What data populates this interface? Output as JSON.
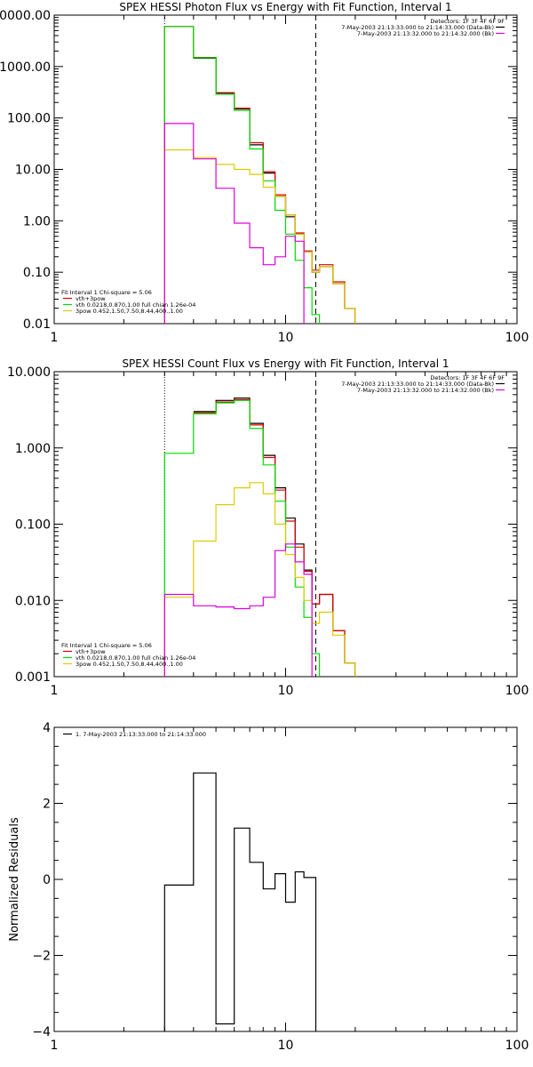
{
  "chart_data": [
    {
      "type": "line",
      "title": "SPEX HESSI Photon Flux vs Energy with Fit Function, Interval 1",
      "xscale": "log",
      "yscale": "log",
      "xlim": [
        1,
        100
      ],
      "ylim": [
        0.01,
        10000
      ],
      "xticks": [
        "1",
        "10",
        "100"
      ],
      "yticks": [
        "0.01",
        "0.10",
        "1.00",
        "10.00",
        "100.00",
        "1000.00",
        "10000.00"
      ],
      "vlines": [
        {
          "x": 3,
          "style": "dotted"
        },
        {
          "x": 13.5,
          "style": "dashed"
        }
      ],
      "info": {
        "detectors": "Detectors: 1F 3F 4F 6F 9F",
        "lines": [
          {
            "text": "7-May-2003 21:13:33.000 to 21:14:33.000 (Data-Bk)",
            "color": "#000000"
          },
          {
            "text": "7-May-2003 21:13:32.000 to 21:14:32.000 (Bk)",
            "color": "#dd00dd"
          }
        ]
      },
      "legend": {
        "header": "Fit Interval  1   Chi-square = 5.06",
        "entries": [
          {
            "text": "vth+3pow",
            "color": "#dd0000"
          },
          {
            "text": "vth 0.0218,0.870,1.00  full chian 1.26e-04",
            "color": "#00dd00"
          },
          {
            "text": "3pow 0.452,1.50,7.50,8.44,400.,1.00",
            "color": "#ddcc00"
          }
        ]
      },
      "edges": [
        3,
        4,
        5,
        6,
        7,
        8,
        9,
        10,
        11,
        12,
        13,
        14,
        16,
        18,
        20
      ],
      "series": [
        {
          "color": "#000000",
          "values": [
            null,
            1450,
            300,
            150,
            30,
            8.5,
            3,
            1.2,
            0.55,
            0.25,
            0.1,
            0.13,
            0.06,
            0.02
          ]
        },
        {
          "color": "#dd0000",
          "values": [
            6000,
            1500,
            310,
            155,
            33,
            9,
            3.2,
            1.3,
            0.58,
            0.26,
            0.11,
            0.14,
            0.065,
            0.02
          ]
        },
        {
          "color": "#00dd00",
          "values": [
            6000,
            1480,
            290,
            140,
            25,
            6,
            1.6,
            0.55,
            0.17,
            0.05,
            0.015
          ]
        },
        {
          "color": "#ddcc00",
          "values": [
            24,
            17,
            12.5,
            10,
            8,
            4.5,
            3,
            1.3,
            0.55,
            0.25,
            0.1,
            0.13,
            0.06,
            0.02
          ]
        },
        {
          "color": "#dd00dd",
          "values": [
            78,
            16,
            4.3,
            0.9,
            0.3,
            0.14,
            0.2,
            0.5,
            0.4
          ]
        }
      ]
    },
    {
      "type": "line",
      "title": "SPEX HESSI Count Flux vs Energy with Fit Function, Interval 1",
      "xscale": "log",
      "yscale": "log",
      "xlim": [
        1,
        100
      ],
      "ylim": [
        0.001,
        10
      ],
      "xticks": [
        "1",
        "10",
        "100"
      ],
      "yticks": [
        "0.001",
        "0.010",
        "0.100",
        "1.000",
        "10.000"
      ],
      "vlines": [
        {
          "x": 3,
          "style": "dotted"
        },
        {
          "x": 13.5,
          "style": "dashed"
        }
      ],
      "info": {
        "detectors": "Detectors: 1F 3F 4F 6F 9F",
        "lines": [
          {
            "text": "7-May-2003 21:13:33.000 to 21:14:33.000 (Data-Bk)",
            "color": "#000000"
          },
          {
            "text": "7-May-2003 21:13:32.000 to 21:14:32.000 (Bk)",
            "color": "#dd00dd"
          }
        ]
      },
      "legend": {
        "header": "Fit Interval  1   Chi-square = 5.06",
        "entries": [
          {
            "text": "vth+3pow",
            "color": "#dd0000"
          },
          {
            "text": "vth 0.0218,0.870,1.00  full chian 1.26e-04",
            "color": "#00dd00"
          },
          {
            "text": "3pow 0.452,1.50,7.50,8.44,400.,1.00",
            "color": "#ddcc00"
          }
        ]
      },
      "edges": [
        3,
        4,
        5,
        6,
        7,
        8,
        9,
        10,
        11,
        12,
        13,
        14,
        16,
        18,
        20
      ],
      "series": [
        {
          "color": "#000000",
          "values": [
            null,
            3.0,
            4.2,
            4.5,
            2.1,
            0.8,
            0.3,
            0.12,
            0.055,
            0.025,
            0.009,
            0.012,
            0.004,
            0.0015
          ]
        },
        {
          "color": "#dd0000",
          "values": [
            null,
            2.9,
            4.0,
            4.3,
            2.0,
            0.75,
            0.28,
            0.11,
            0.05,
            0.024,
            0.009,
            0.012,
            0.004,
            0.0015
          ]
        },
        {
          "color": "#00dd00",
          "values": [
            0.85,
            2.8,
            3.9,
            4.2,
            1.8,
            0.6,
            0.2,
            0.05,
            0.015,
            0.006,
            0.002
          ]
        },
        {
          "color": "#ddcc00",
          "values": [
            0.011,
            0.06,
            0.18,
            0.3,
            0.35,
            0.25,
            0.1,
            0.04,
            0.02,
            0.01,
            0.005,
            0.007,
            0.0035,
            0.0015
          ]
        },
        {
          "color": "#dd00dd",
          "values": [
            0.012,
            0.0085,
            0.0082,
            0.0078,
            0.0085,
            0.011,
            0.045,
            0.055,
            0.032,
            0.022
          ]
        }
      ]
    },
    {
      "type": "line",
      "title": "",
      "ylabel": "Normalized Residuals",
      "xscale": "log",
      "yscale": "linear",
      "xlim": [
        1,
        100
      ],
      "ylim": [
        -4,
        4
      ],
      "xticks": [
        "1",
        "10",
        "100"
      ],
      "yticks": [
        "-4",
        "-2",
        "0",
        "2",
        "4"
      ],
      "legend": {
        "entries": [
          {
            "text": "1.  7-May-2003 21:13:33.000 to 21:14:33.000",
            "color": "#000000"
          }
        ]
      },
      "edges": [
        3,
        4,
        5,
        6,
        7,
        8,
        9,
        10,
        11,
        12,
        13.5
      ],
      "series": [
        {
          "color": "#000000",
          "values": [
            -0.15,
            2.8,
            -3.8,
            1.35,
            0.45,
            -0.25,
            0.15,
            -0.6,
            0.2,
            0.05
          ],
          "drop_to_bottom": true
        }
      ]
    }
  ]
}
